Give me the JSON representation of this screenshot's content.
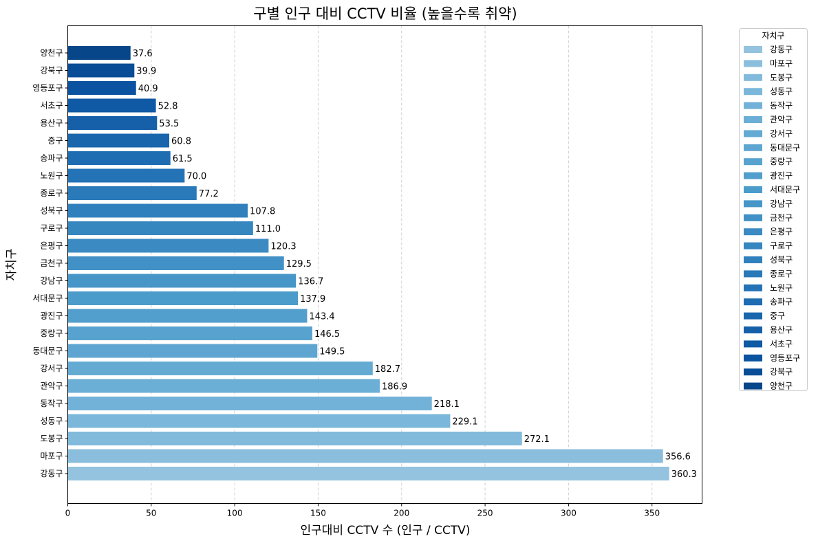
{
  "chart_data": {
    "type": "bar",
    "orientation": "horizontal",
    "title": "구별 인구 대비 CCTV 비율 (높을수록 취약)",
    "xlabel": "인구대비 CCTV 수 (인구 / CCTV)",
    "ylabel": "자치구",
    "xlim": [
      0,
      380
    ],
    "xticks": [
      0,
      50,
      100,
      150,
      200,
      250,
      300,
      350
    ],
    "grid": "x-dashed",
    "legend_title": "자치구",
    "legend_position": "outside-right",
    "categories": [
      "양천구",
      "강북구",
      "영등포구",
      "서초구",
      "용산구",
      "중구",
      "송파구",
      "노원구",
      "종로구",
      "성북구",
      "구로구",
      "은평구",
      "금천구",
      "강남구",
      "서대문구",
      "광진구",
      "중랑구",
      "동대문구",
      "강서구",
      "관악구",
      "동작구",
      "성동구",
      "도봉구",
      "마포구",
      "강동구"
    ],
    "values": [
      37.6,
      39.9,
      40.9,
      52.8,
      53.5,
      60.8,
      61.5,
      70.0,
      77.2,
      107.8,
      111.0,
      120.3,
      129.5,
      136.7,
      137.9,
      143.4,
      146.5,
      149.5,
      182.7,
      186.9,
      218.1,
      229.1,
      272.1,
      356.6,
      360.3
    ],
    "value_labels": [
      "37.6",
      "39.9",
      "40.9",
      "52.8",
      "53.5",
      "60.8",
      "61.5",
      "70.0",
      "77.2",
      "107.8",
      "111.0",
      "120.3",
      "129.5",
      "136.7",
      "137.9",
      "143.4",
      "146.5",
      "149.5",
      "182.7",
      "186.9",
      "218.1",
      "229.1",
      "272.1",
      "356.6",
      "360.3"
    ],
    "colors": [
      "#08468a",
      "#084d96",
      "#0b53a0",
      "#1059a5",
      "#1560a9",
      "#1966ad",
      "#1e6db2",
      "#2373b6",
      "#2a79b8",
      "#3080bd",
      "#3686c0",
      "#3b8bc2",
      "#4191c6",
      "#4696c8",
      "#4b9bcb",
      "#529ecd",
      "#58a2cf",
      "#5ea6d1",
      "#64aad3",
      "#6bafd6",
      "#72b2d8",
      "#7ab7da",
      "#82badb",
      "#8bbedd",
      "#93c3df"
    ],
    "legend_order": [
      "강동구",
      "마포구",
      "도봉구",
      "성동구",
      "동작구",
      "관악구",
      "강서구",
      "동대문구",
      "중랑구",
      "광진구",
      "서대문구",
      "강남구",
      "금천구",
      "은평구",
      "구로구",
      "성북구",
      "종로구",
      "노원구",
      "송파구",
      "중구",
      "용산구",
      "서초구",
      "영등포구",
      "강북구",
      "양천구"
    ]
  }
}
